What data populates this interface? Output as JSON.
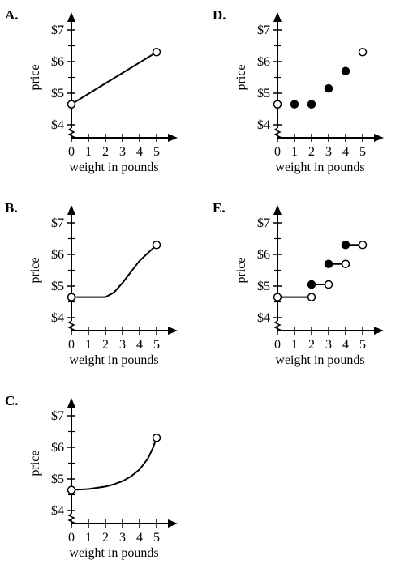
{
  "chart_data": [
    {
      "type": "line",
      "panel": "A.",
      "xlabel": "weight in pounds",
      "ylabel": "price",
      "x_ticks": [
        "0",
        "1",
        "2",
        "3",
        "4",
        "5"
      ],
      "y_ticks": [
        "$4",
        "$5",
        "$6",
        "$7"
      ],
      "xlim": [
        0,
        5
      ],
      "ylim": [
        4,
        7
      ],
      "y_axis_break": true,
      "curve": [
        [
          0,
          4.65
        ],
        [
          5,
          6.3
        ]
      ],
      "segments": [],
      "points": [
        {
          "x": 0,
          "y": 4.65,
          "filled": false
        },
        {
          "x": 5,
          "y": 6.3,
          "filled": false
        }
      ]
    },
    {
      "type": "line",
      "panel": "B.",
      "xlabel": "weight in pounds",
      "ylabel": "price",
      "x_ticks": [
        "0",
        "1",
        "2",
        "3",
        "4",
        "5"
      ],
      "y_ticks": [
        "$4",
        "$5",
        "$6",
        "$7"
      ],
      "xlim": [
        0,
        5
      ],
      "ylim": [
        4,
        7
      ],
      "y_axis_break": true,
      "curve": [
        [
          0,
          4.65
        ],
        [
          1,
          4.65
        ],
        [
          2,
          4.65
        ],
        [
          2.5,
          4.8
        ],
        [
          3,
          5.1
        ],
        [
          3.5,
          5.45
        ],
        [
          4,
          5.8
        ],
        [
          4.5,
          6.05
        ],
        [
          5,
          6.3
        ]
      ],
      "segments": [],
      "points": [
        {
          "x": 0,
          "y": 4.65,
          "filled": false
        },
        {
          "x": 5,
          "y": 6.3,
          "filled": false
        }
      ]
    },
    {
      "type": "line",
      "panel": "C.",
      "xlabel": "weight in pounds",
      "ylabel": "price",
      "x_ticks": [
        "0",
        "1",
        "2",
        "3",
        "4",
        "5"
      ],
      "y_ticks": [
        "$4",
        "$5",
        "$6",
        "$7"
      ],
      "xlim": [
        0,
        5
      ],
      "ylim": [
        4,
        7
      ],
      "y_axis_break": true,
      "curve": [
        [
          0,
          4.65
        ],
        [
          1,
          4.68
        ],
        [
          2,
          4.76
        ],
        [
          2.5,
          4.83
        ],
        [
          3,
          4.93
        ],
        [
          3.5,
          5.08
        ],
        [
          4,
          5.3
        ],
        [
          4.5,
          5.65
        ],
        [
          4.8,
          6.0
        ],
        [
          5,
          6.3
        ]
      ],
      "segments": [],
      "points": [
        {
          "x": 0,
          "y": 4.65,
          "filled": false
        },
        {
          "x": 5,
          "y": 6.3,
          "filled": false
        }
      ]
    },
    {
      "type": "scatter",
      "panel": "D.",
      "xlabel": "weight in pounds",
      "ylabel": "price",
      "x_ticks": [
        "0",
        "1",
        "2",
        "3",
        "4",
        "5"
      ],
      "y_ticks": [
        "$4",
        "$5",
        "$6",
        "$7"
      ],
      "xlim": [
        0,
        5
      ],
      "ylim": [
        4,
        7
      ],
      "y_axis_break": true,
      "curve": [],
      "segments": [],
      "points": [
        {
          "x": 0,
          "y": 4.65,
          "filled": false
        },
        {
          "x": 1,
          "y": 4.65,
          "filled": true
        },
        {
          "x": 2,
          "y": 4.65,
          "filled": true
        },
        {
          "x": 3,
          "y": 5.15,
          "filled": true
        },
        {
          "x": 4,
          "y": 5.7,
          "filled": true
        },
        {
          "x": 5,
          "y": 6.3,
          "filled": false
        }
      ]
    },
    {
      "type": "line",
      "panel": "E.",
      "xlabel": "weight in pounds",
      "ylabel": "price",
      "x_ticks": [
        "0",
        "1",
        "2",
        "3",
        "4",
        "5"
      ],
      "y_ticks": [
        "$4",
        "$5",
        "$6",
        "$7"
      ],
      "xlim": [
        0,
        5
      ],
      "ylim": [
        4,
        7
      ],
      "y_axis_break": true,
      "curve": [],
      "segments": [
        {
          "x1": 0,
          "x2": 2,
          "y": 4.65,
          "start_filled": false,
          "end_filled": false
        },
        {
          "x1": 2,
          "x2": 3,
          "y": 5.05,
          "start_filled": true,
          "end_filled": false
        },
        {
          "x1": 3,
          "x2": 4,
          "y": 5.7,
          "start_filled": true,
          "end_filled": false
        },
        {
          "x1": 4,
          "x2": 5,
          "y": 6.3,
          "start_filled": true,
          "end_filled": false
        }
      ],
      "points": []
    }
  ]
}
